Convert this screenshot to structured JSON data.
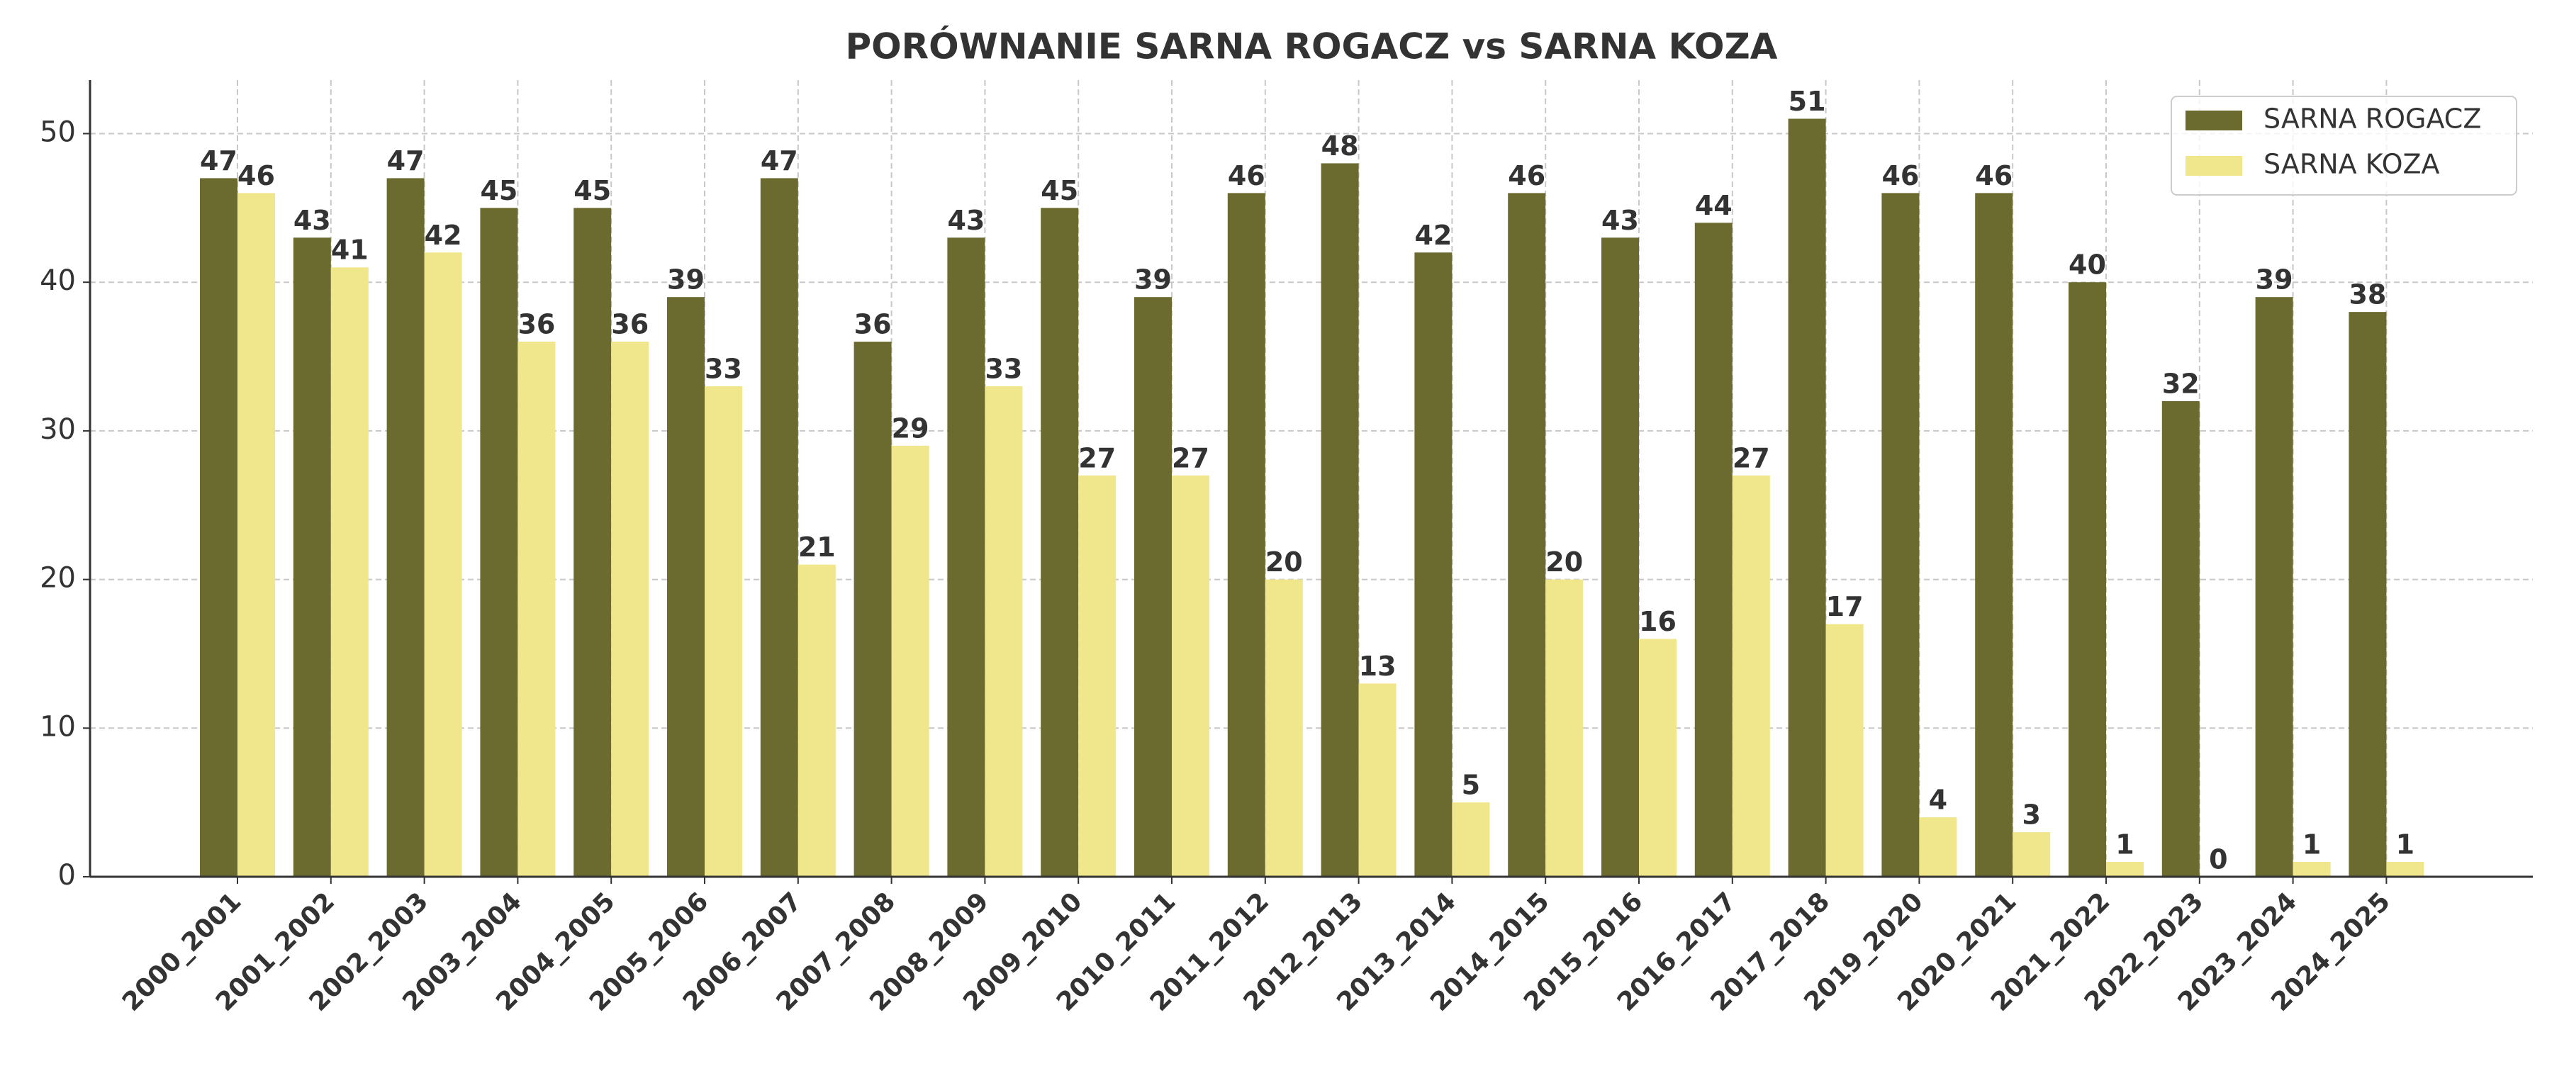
{
  "chart_data": {
    "type": "bar",
    "title": "PORÓWNANIE SARNA ROGACZ vs SARNA KOZA",
    "categories": [
      "2000_2001",
      "2001_2002",
      "2002_2003",
      "2003_2004",
      "2004_2005",
      "2005_2006",
      "2006_2007",
      "2007_2008",
      "2008_2009",
      "2009_2010",
      "2010_2011",
      "2011_2012",
      "2012_2013",
      "2013_2014",
      "2014_2015",
      "2015_2016",
      "2016_2017",
      "2017_2018",
      "2019_2020",
      "2020_2021",
      "2021_2022",
      "2022_2023",
      "2023_2024",
      "2024_2025"
    ],
    "series": [
      {
        "name": "SARNA ROGACZ",
        "color": "#6b6b2f",
        "values": [
          47,
          43,
          47,
          45,
          45,
          39,
          47,
          36,
          43,
          45,
          39,
          46,
          48,
          42,
          46,
          43,
          44,
          51,
          46,
          46,
          40,
          32,
          39,
          38
        ]
      },
      {
        "name": "SARNA KOZA",
        "color": "#f0e68c",
        "values": [
          46,
          41,
          42,
          36,
          36,
          33,
          21,
          29,
          33,
          27,
          27,
          20,
          13,
          5,
          20,
          16,
          27,
          17,
          4,
          3,
          1,
          0,
          1,
          1
        ]
      }
    ],
    "ylim": [
      0,
      53.6
    ],
    "yticks": [
      0,
      10,
      20,
      30,
      40,
      50
    ],
    "grid": true,
    "legend": "upper right"
  }
}
